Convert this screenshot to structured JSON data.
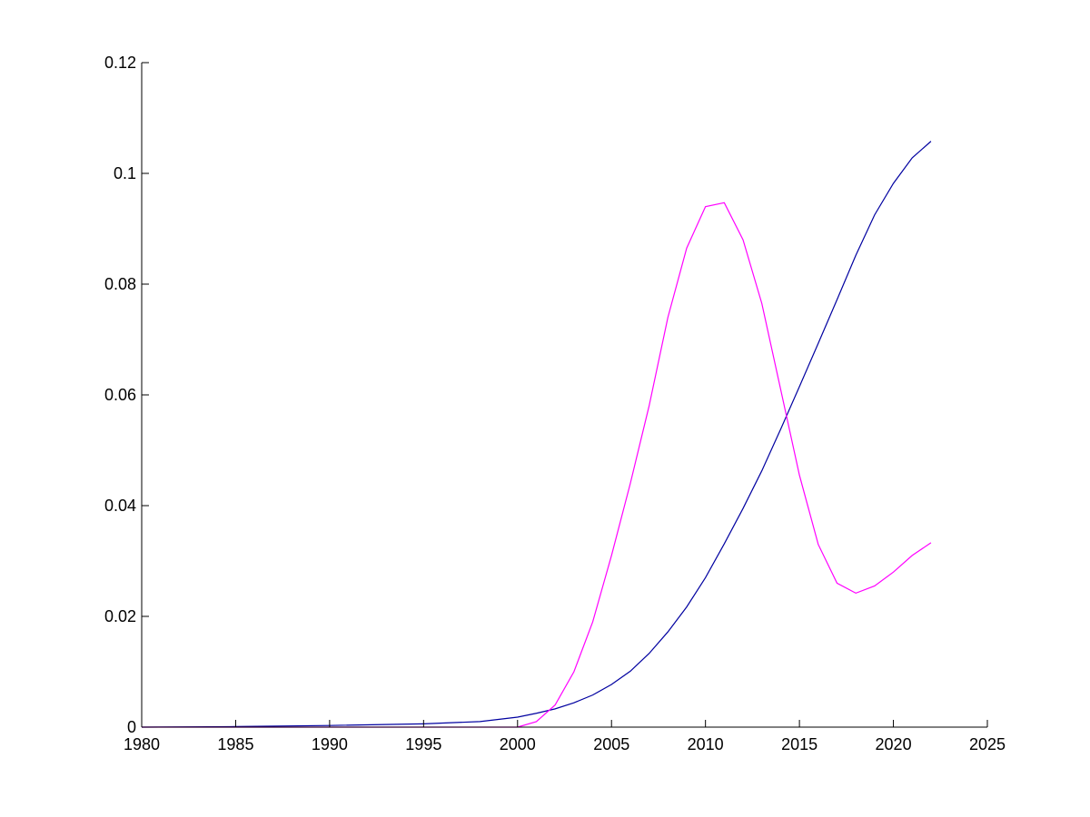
{
  "chart_data": {
    "type": "line",
    "title": "",
    "xlabel": "",
    "ylabel": "",
    "xlim": [
      1980,
      2025
    ],
    "ylim": [
      0,
      0.12
    ],
    "grid": false,
    "legend": "none",
    "x_ticks": [
      1980,
      1985,
      1990,
      1995,
      2000,
      2005,
      2010,
      2015,
      2020,
      2025
    ],
    "x_tick_labels": [
      "1980",
      "1985",
      "1990",
      "1995",
      "2000",
      "2005",
      "2010",
      "2015",
      "2020",
      "2025"
    ],
    "y_ticks": [
      0,
      0.02,
      0.04,
      0.06,
      0.08,
      0.1,
      0.12
    ],
    "y_tick_labels": [
      "0",
      "0.02",
      "0.04",
      "0.06",
      "0.08",
      "0.1",
      "0.12"
    ],
    "series": [
      {
        "color": "#0000a0",
        "x": [
          1980,
          1985,
          1990,
          1995,
          1998,
          2000,
          2001,
          2002,
          2003,
          2004,
          2005,
          2006,
          2007,
          2008,
          2009,
          2010,
          2011,
          2012,
          2013,
          2014,
          2015,
          2016,
          2017,
          2018,
          2019,
          2020,
          2021,
          2022
        ],
        "y": [
          0,
          0.0001,
          0.0003,
          0.0006,
          0.001,
          0.0018,
          0.0025,
          0.0033,
          0.0044,
          0.0058,
          0.0077,
          0.0101,
          0.0133,
          0.0172,
          0.0217,
          0.027,
          0.0331,
          0.0395,
          0.0463,
          0.0538,
          0.0615,
          0.0693,
          0.0772,
          0.0852,
          0.0925,
          0.0982,
          0.1028,
          0.1058
        ]
      },
      {
        "color": "#ff00ff",
        "x": [
          1980,
          1995,
          2000,
          2001,
          2002,
          2003,
          2004,
          2005,
          2006,
          2007,
          2008,
          2009,
          2010,
          2011,
          2012,
          2013,
          2014,
          2015,
          2016,
          2017,
          2018,
          2019,
          2020,
          2021,
          2022
        ],
        "y": [
          0,
          0,
          0,
          0.001,
          0.004,
          0.01,
          0.019,
          0.031,
          0.044,
          0.058,
          0.074,
          0.0865,
          0.094,
          0.0947,
          0.088,
          0.0765,
          0.061,
          0.0455,
          0.033,
          0.026,
          0.0242,
          0.0255,
          0.028,
          0.031,
          0.0333
        ]
      }
    ]
  }
}
